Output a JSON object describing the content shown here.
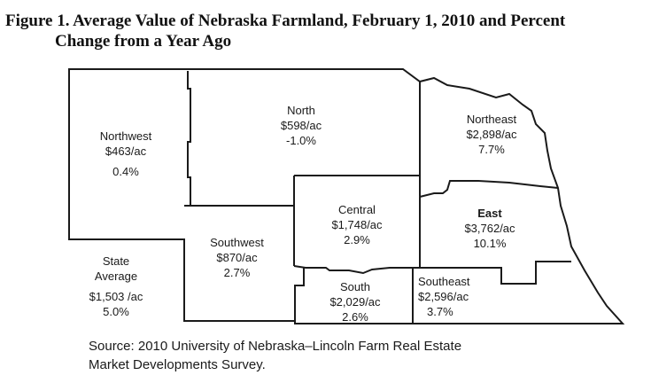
{
  "title": {
    "line1": "Figure 1.  Average Value of Nebraska Farmland, February 1, 2010 and Percent",
    "line2": "Change from a Year Ago"
  },
  "regions": {
    "northwest": {
      "name": "Northwest",
      "value": "$463/ac",
      "change": "0.4%"
    },
    "north": {
      "name": "North",
      "value": "$598/ac",
      "change": "-1.0%"
    },
    "northeast": {
      "name": "Northeast",
      "value": "$2,898/ac",
      "change": "7.7%"
    },
    "central": {
      "name": "Central",
      "value": "$1,748/ac",
      "change": "2.9%"
    },
    "east": {
      "name": "East",
      "value": "$3,762/ac",
      "change": "10.1%"
    },
    "southwest": {
      "name": "Southwest",
      "value": "$870/ac",
      "change": "2.7%"
    },
    "south": {
      "name": "South",
      "value": "$2,029/ac",
      "change": "2.6%"
    },
    "southeast": {
      "name": "Southeast",
      "value": "$2,596/ac",
      "change": "3.7%"
    }
  },
  "state_average": {
    "line1": "State",
    "line2": "Average",
    "value": "$1,503 /ac",
    "change": "5.0%"
  },
  "source": {
    "line1": "Source: 2010 University of Nebraska–Lincoln Farm Real Estate",
    "line2": "Market Developments Survey."
  },
  "colors": {
    "border": "#1a1a1a",
    "background": "#ffffff"
  }
}
